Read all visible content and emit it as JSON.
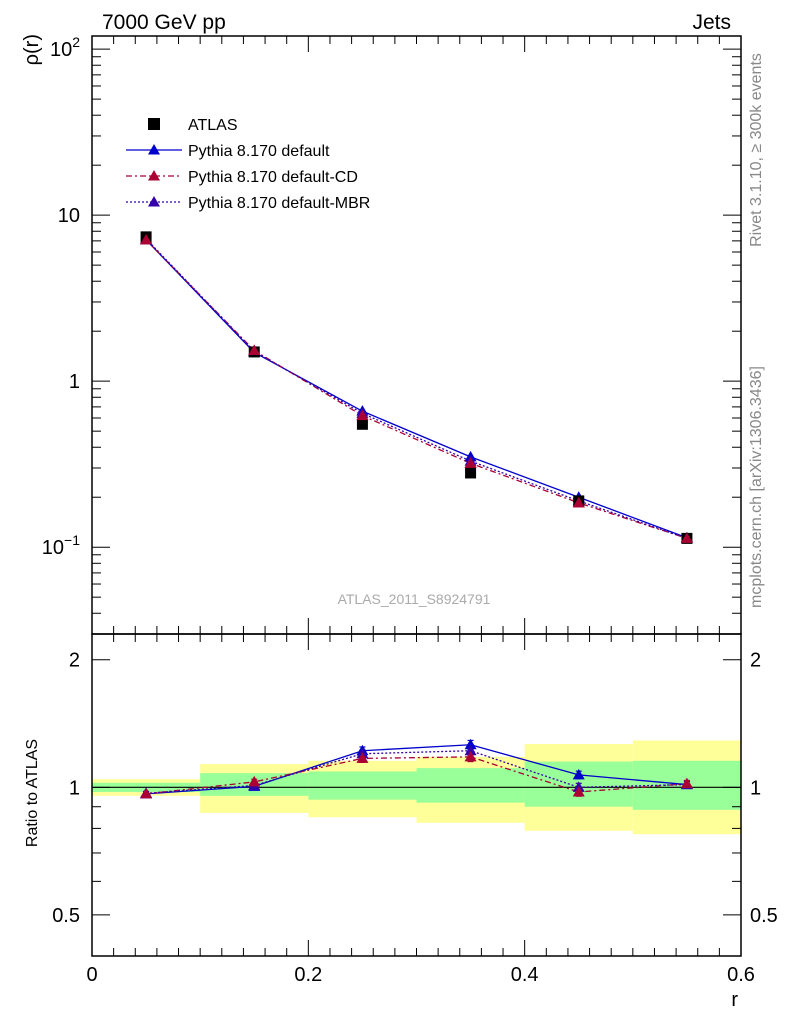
{
  "header": {
    "left": "7000 GeV pp",
    "right": "Jets"
  },
  "side_text": {
    "rivet": "Rivet 3.1.10, ≥ 300k events",
    "mcplots": "mcplots.cern.ch [arXiv:1306.3436]"
  },
  "analysis_label": "ATLAS_2011_S8924791",
  "colors": {
    "data": "#000000",
    "default": "#0000cc",
    "cd": "#aa0033",
    "mbr": "#3300aa",
    "band_outer": "#ffff99",
    "band_inner": "#99ff99"
  },
  "chart_data": [
    {
      "type": "line",
      "ylabel": "ρ(r)",
      "xlim": [
        0,
        0.6
      ],
      "ylim": [
        0.03,
        120
      ],
      "yscale": "log",
      "legend_position": "top-left",
      "y_ticks": [
        {
          "value": 0.1,
          "base": "10",
          "exp": "−1"
        },
        {
          "value": 1,
          "base": "1",
          "exp": ""
        },
        {
          "value": 10,
          "base": "10",
          "exp": ""
        },
        {
          "value": 100,
          "base": "10",
          "exp": "2"
        }
      ],
      "x": [
        0.05,
        0.15,
        0.25,
        0.35,
        0.45,
        0.55
      ],
      "series": [
        {
          "name": "ATLAS",
          "marker": "square",
          "values": [
            7.4,
            1.5,
            0.55,
            0.28,
            0.19,
            0.113
          ]
        },
        {
          "name": "Pythia 8.170 default",
          "marker": "triangle",
          "line": "solid",
          "values": [
            7.1,
            1.49,
            0.66,
            0.35,
            0.2,
            0.114
          ]
        },
        {
          "name": "Pythia 8.170 default-CD",
          "marker": "triangle",
          "line": "dashdot",
          "values": [
            7.1,
            1.53,
            0.62,
            0.32,
            0.185,
            0.113
          ]
        },
        {
          "name": "Pythia 8.170 default-MBR",
          "marker": "triangle",
          "line": "dotted",
          "values": [
            7.2,
            1.51,
            0.64,
            0.33,
            0.19,
            0.113
          ]
        }
      ]
    },
    {
      "type": "line",
      "xlabel": "r",
      "ylabel": "Ratio to ATLAS",
      "xlim": [
        0,
        0.6
      ],
      "ylim": [
        0.4,
        2.3
      ],
      "yscale": "log",
      "x_ticks": [
        {
          "value": 0,
          "label": "0"
        },
        {
          "value": 0.2,
          "label": "0.2"
        },
        {
          "value": 0.4,
          "label": "0.4"
        },
        {
          "value": 0.6,
          "label": "0.6"
        }
      ],
      "y_ticks": [
        {
          "value": 0.5,
          "label": "0.5"
        },
        {
          "value": 1,
          "label": "1"
        },
        {
          "value": 2,
          "label": "2"
        }
      ],
      "bands": [
        {
          "x0": 0.0,
          "x1": 0.1,
          "inner": [
            0.975,
            1.025
          ],
          "outer": [
            0.955,
            1.045
          ]
        },
        {
          "x0": 0.1,
          "x1": 0.2,
          "inner": [
            0.955,
            1.08
          ],
          "outer": [
            0.87,
            1.135
          ]
        },
        {
          "x0": 0.2,
          "x1": 0.3,
          "inner": [
            0.935,
            1.09
          ],
          "outer": [
            0.85,
            1.155
          ]
        },
        {
          "x0": 0.3,
          "x1": 0.4,
          "inner": [
            0.92,
            1.11
          ],
          "outer": [
            0.825,
            1.18
          ]
        },
        {
          "x0": 0.4,
          "x1": 0.5,
          "inner": [
            0.9,
            1.15
          ],
          "outer": [
            0.79,
            1.265
          ]
        },
        {
          "x0": 0.5,
          "x1": 0.6,
          "inner": [
            0.885,
            1.155
          ],
          "outer": [
            0.775,
            1.29
          ]
        }
      ],
      "x": [
        0.05,
        0.15,
        0.25,
        0.35,
        0.45,
        0.55
      ],
      "series": [
        {
          "name": "Pythia 8.170 default",
          "values": [
            0.965,
            1.005,
            1.22,
            1.26,
            1.07,
            1.015
          ],
          "errors": [
            0.01,
            0.012,
            0.025,
            0.03,
            0.022,
            0.018
          ]
        },
        {
          "name": "Pythia 8.170 default-CD",
          "values": [
            0.965,
            1.03,
            1.17,
            1.18,
            0.975,
            1.02
          ],
          "errors": [
            0.01,
            0.015,
            0.025,
            0.03,
            0.022,
            0.018
          ]
        },
        {
          "name": "Pythia 8.170 default-MBR",
          "values": [
            0.968,
            1.01,
            1.2,
            1.22,
            1.0,
            1.015
          ],
          "errors": [
            0.01,
            0.012,
            0.025,
            0.03,
            0.022,
            0.018
          ]
        }
      ]
    }
  ]
}
